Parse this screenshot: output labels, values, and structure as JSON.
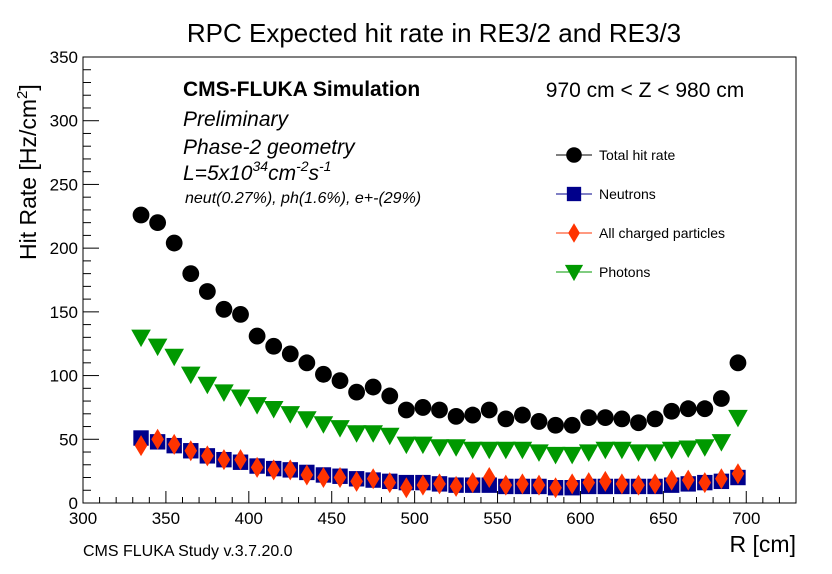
{
  "chart_data": {
    "type": "scatter",
    "title": "RPC Expected hit rate in RE3/2 and RE3/3",
    "xlabel": "R [cm]",
    "ylabel_main": "Hit Rate [Hz/cm",
    "ylabel_sup": "2",
    "ylabel_end": "]",
    "xlim": [
      300,
      730
    ],
    "ylim": [
      0,
      350
    ],
    "x_ticks": [
      "300",
      "350",
      "400",
      "450",
      "500",
      "550",
      "600",
      "650",
      "700"
    ],
    "y_ticks": [
      "0",
      "50",
      "100",
      "150",
      "200",
      "250",
      "300",
      "350"
    ],
    "annotations": {
      "sim_label": "CMS-FLUKA Simulation",
      "preliminary": "Preliminary",
      "geometry": "Phase-2 geometry",
      "lumi_prefix": "L=5x10",
      "lumi_exp": "34",
      "lumi_unit1": "cm",
      "lumi_unit1_exp": "-2",
      "lumi_unit2": "s",
      "lumi_unit2_exp": "-1",
      "fractions": "neut(0.27%), ph(1.6%), e+-(29%)",
      "z_range": "970 cm < Z < 980 cm",
      "footer": "CMS FLUKA Study v.3.7.20.0"
    },
    "x": [
      335,
      345,
      355,
      365,
      375,
      385,
      395,
      405,
      415,
      425,
      435,
      445,
      455,
      465,
      475,
      485,
      495,
      505,
      515,
      525,
      535,
      545,
      555,
      565,
      575,
      585,
      595,
      605,
      615,
      625,
      635,
      645,
      655,
      665,
      675,
      685,
      695
    ],
    "series": [
      {
        "name": "Total hit rate",
        "color": "#000000",
        "marker": "circle",
        "values": [
          226,
          220,
          204,
          180,
          166,
          152,
          148,
          131,
          123,
          117,
          110,
          101,
          96,
          87,
          91,
          84,
          73,
          75,
          73,
          68,
          69,
          73,
          66,
          69,
          64,
          61,
          61,
          67,
          67,
          66,
          63,
          66,
          72,
          74,
          74,
          82,
          110
        ]
      },
      {
        "name": "Neutrons",
        "color": "#00008b",
        "marker": "square",
        "values": [
          51,
          48,
          45,
          41,
          37,
          34,
          32,
          29,
          27,
          26,
          24,
          22,
          21,
          19,
          18,
          17,
          16,
          16,
          15,
          14,
          14,
          14,
          13,
          13,
          13,
          12,
          12,
          13,
          13,
          13,
          13,
          13,
          14,
          15,
          16,
          17,
          20
        ]
      },
      {
        "name": "All charged particles",
        "color": "#ff3300",
        "marker": "diamond",
        "values": [
          45,
          50,
          46,
          41,
          37,
          34,
          34,
          28,
          26,
          26,
          22,
          20,
          20,
          17,
          19,
          16,
          12,
          14,
          15,
          13,
          16,
          20,
          14,
          15,
          14,
          12,
          15,
          16,
          17,
          15,
          14,
          15,
          18,
          18,
          16,
          19,
          23
        ]
      },
      {
        "name": "Photons",
        "color": "#009900",
        "marker": "triangle-down",
        "values": [
          130,
          123,
          115,
          101,
          93,
          87,
          83,
          77,
          74,
          70,
          66,
          62,
          59,
          55,
          55,
          53,
          46,
          46,
          44,
          44,
          42,
          42,
          42,
          42,
          40,
          38,
          38,
          40,
          42,
          42,
          40,
          40,
          42,
          43,
          44,
          48,
          67
        ]
      }
    ]
  }
}
